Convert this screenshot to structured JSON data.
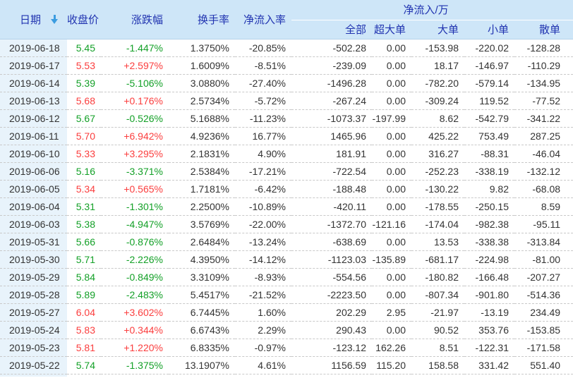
{
  "header": {
    "date": "日期",
    "close": "收盘价",
    "change": "涨跌幅",
    "turnover": "换手率",
    "inflow_rate": "净流入率",
    "inflow_group": "净流入/万",
    "inflow_all": "全部",
    "inflow_super": "超大单",
    "inflow_large": "大单",
    "inflow_small": "小单",
    "inflow_scatter": "散单",
    "sort_icon": "sort-descending-arrow"
  },
  "colors": {
    "up_red": "#fb3e3e",
    "down_green": "#13a027",
    "header_text": "#2033b0",
    "header_bg": "#cee6f8",
    "date_column_bg": "#e8f3fb",
    "sort_arrow": "#3b9ce0"
  },
  "rows": [
    {
      "date": "2019-06-18",
      "close": "5.45",
      "change": "-1.447%",
      "turnover": "1.3750%",
      "inflow_rate": "-20.85%",
      "all": "-502.28",
      "super": "0.00",
      "large": "-153.98",
      "small": "-220.02",
      "scatter": "-128.28",
      "trend": "down"
    },
    {
      "date": "2019-06-17",
      "close": "5.53",
      "change": "+2.597%",
      "turnover": "1.6009%",
      "inflow_rate": "-8.51%",
      "all": "-239.09",
      "super": "0.00",
      "large": "18.17",
      "small": "-146.97",
      "scatter": "-110.29",
      "trend": "up"
    },
    {
      "date": "2019-06-14",
      "close": "5.39",
      "change": "-5.106%",
      "turnover": "3.0880%",
      "inflow_rate": "-27.40%",
      "all": "-1496.28",
      "super": "0.00",
      "large": "-782.20",
      "small": "-579.14",
      "scatter": "-134.95",
      "trend": "down"
    },
    {
      "date": "2019-06-13",
      "close": "5.68",
      "change": "+0.176%",
      "turnover": "2.5734%",
      "inflow_rate": "-5.72%",
      "all": "-267.24",
      "super": "0.00",
      "large": "-309.24",
      "small": "119.52",
      "scatter": "-77.52",
      "trend": "up"
    },
    {
      "date": "2019-06-12",
      "close": "5.67",
      "change": "-0.526%",
      "turnover": "5.1688%",
      "inflow_rate": "-11.23%",
      "all": "-1073.37",
      "super": "-197.99",
      "large": "8.62",
      "small": "-542.79",
      "scatter": "-341.22",
      "trend": "down"
    },
    {
      "date": "2019-06-11",
      "close": "5.70",
      "change": "+6.942%",
      "turnover": "4.9236%",
      "inflow_rate": "16.77%",
      "all": "1465.96",
      "super": "0.00",
      "large": "425.22",
      "small": "753.49",
      "scatter": "287.25",
      "trend": "up"
    },
    {
      "date": "2019-06-10",
      "close": "5.33",
      "change": "+3.295%",
      "turnover": "2.1831%",
      "inflow_rate": "4.90%",
      "all": "181.91",
      "super": "0.00",
      "large": "316.27",
      "small": "-88.31",
      "scatter": "-46.04",
      "trend": "up"
    },
    {
      "date": "2019-06-06",
      "close": "5.16",
      "change": "-3.371%",
      "turnover": "2.5384%",
      "inflow_rate": "-17.21%",
      "all": "-722.54",
      "super": "0.00",
      "large": "-252.23",
      "small": "-338.19",
      "scatter": "-132.12",
      "trend": "down"
    },
    {
      "date": "2019-06-05",
      "close": "5.34",
      "change": "+0.565%",
      "turnover": "1.7181%",
      "inflow_rate": "-6.42%",
      "all": "-188.48",
      "super": "0.00",
      "large": "-130.22",
      "small": "9.82",
      "scatter": "-68.08",
      "trend": "up"
    },
    {
      "date": "2019-06-04",
      "close": "5.31",
      "change": "-1.301%",
      "turnover": "2.2500%",
      "inflow_rate": "-10.89%",
      "all": "-420.11",
      "super": "0.00",
      "large": "-178.55",
      "small": "-250.15",
      "scatter": "8.59",
      "trend": "down"
    },
    {
      "date": "2019-06-03",
      "close": "5.38",
      "change": "-4.947%",
      "turnover": "3.5769%",
      "inflow_rate": "-22.00%",
      "all": "-1372.70",
      "super": "-121.16",
      "large": "-174.04",
      "small": "-982.38",
      "scatter": "-95.11",
      "trend": "down"
    },
    {
      "date": "2019-05-31",
      "close": "5.66",
      "change": "-0.876%",
      "turnover": "2.6484%",
      "inflow_rate": "-13.24%",
      "all": "-638.69",
      "super": "0.00",
      "large": "13.53",
      "small": "-338.38",
      "scatter": "-313.84",
      "trend": "down"
    },
    {
      "date": "2019-05-30",
      "close": "5.71",
      "change": "-2.226%",
      "turnover": "4.3950%",
      "inflow_rate": "-14.12%",
      "all": "-1123.03",
      "super": "-135.89",
      "large": "-681.17",
      "small": "-224.98",
      "scatter": "-81.00",
      "trend": "down"
    },
    {
      "date": "2019-05-29",
      "close": "5.84",
      "change": "-0.849%",
      "turnover": "3.3109%",
      "inflow_rate": "-8.93%",
      "all": "-554.56",
      "super": "0.00",
      "large": "-180.82",
      "small": "-166.48",
      "scatter": "-207.27",
      "trend": "down"
    },
    {
      "date": "2019-05-28",
      "close": "5.89",
      "change": "-2.483%",
      "turnover": "5.4517%",
      "inflow_rate": "-21.52%",
      "all": "-2223.50",
      "super": "0.00",
      "large": "-807.34",
      "small": "-901.80",
      "scatter": "-514.36",
      "trend": "down"
    },
    {
      "date": "2019-05-27",
      "close": "6.04",
      "change": "+3.602%",
      "turnover": "6.7445%",
      "inflow_rate": "1.60%",
      "all": "202.29",
      "super": "2.95",
      "large": "-21.97",
      "small": "-13.19",
      "scatter": "234.49",
      "trend": "up"
    },
    {
      "date": "2019-05-24",
      "close": "5.83",
      "change": "+0.344%",
      "turnover": "6.6743%",
      "inflow_rate": "2.29%",
      "all": "290.43",
      "super": "0.00",
      "large": "90.52",
      "small": "353.76",
      "scatter": "-153.85",
      "trend": "up"
    },
    {
      "date": "2019-05-23",
      "close": "5.81",
      "change": "+1.220%",
      "turnover": "6.8335%",
      "inflow_rate": "-0.97%",
      "all": "-123.12",
      "super": "162.26",
      "large": "8.51",
      "small": "-122.31",
      "scatter": "-171.58",
      "trend": "up"
    },
    {
      "date": "2019-05-22",
      "close": "5.74",
      "change": "-1.375%",
      "turnover": "13.1907%",
      "inflow_rate": "4.61%",
      "all": "1156.59",
      "super": "115.20",
      "large": "158.58",
      "small": "331.42",
      "scatter": "551.40",
      "trend": "down"
    }
  ]
}
